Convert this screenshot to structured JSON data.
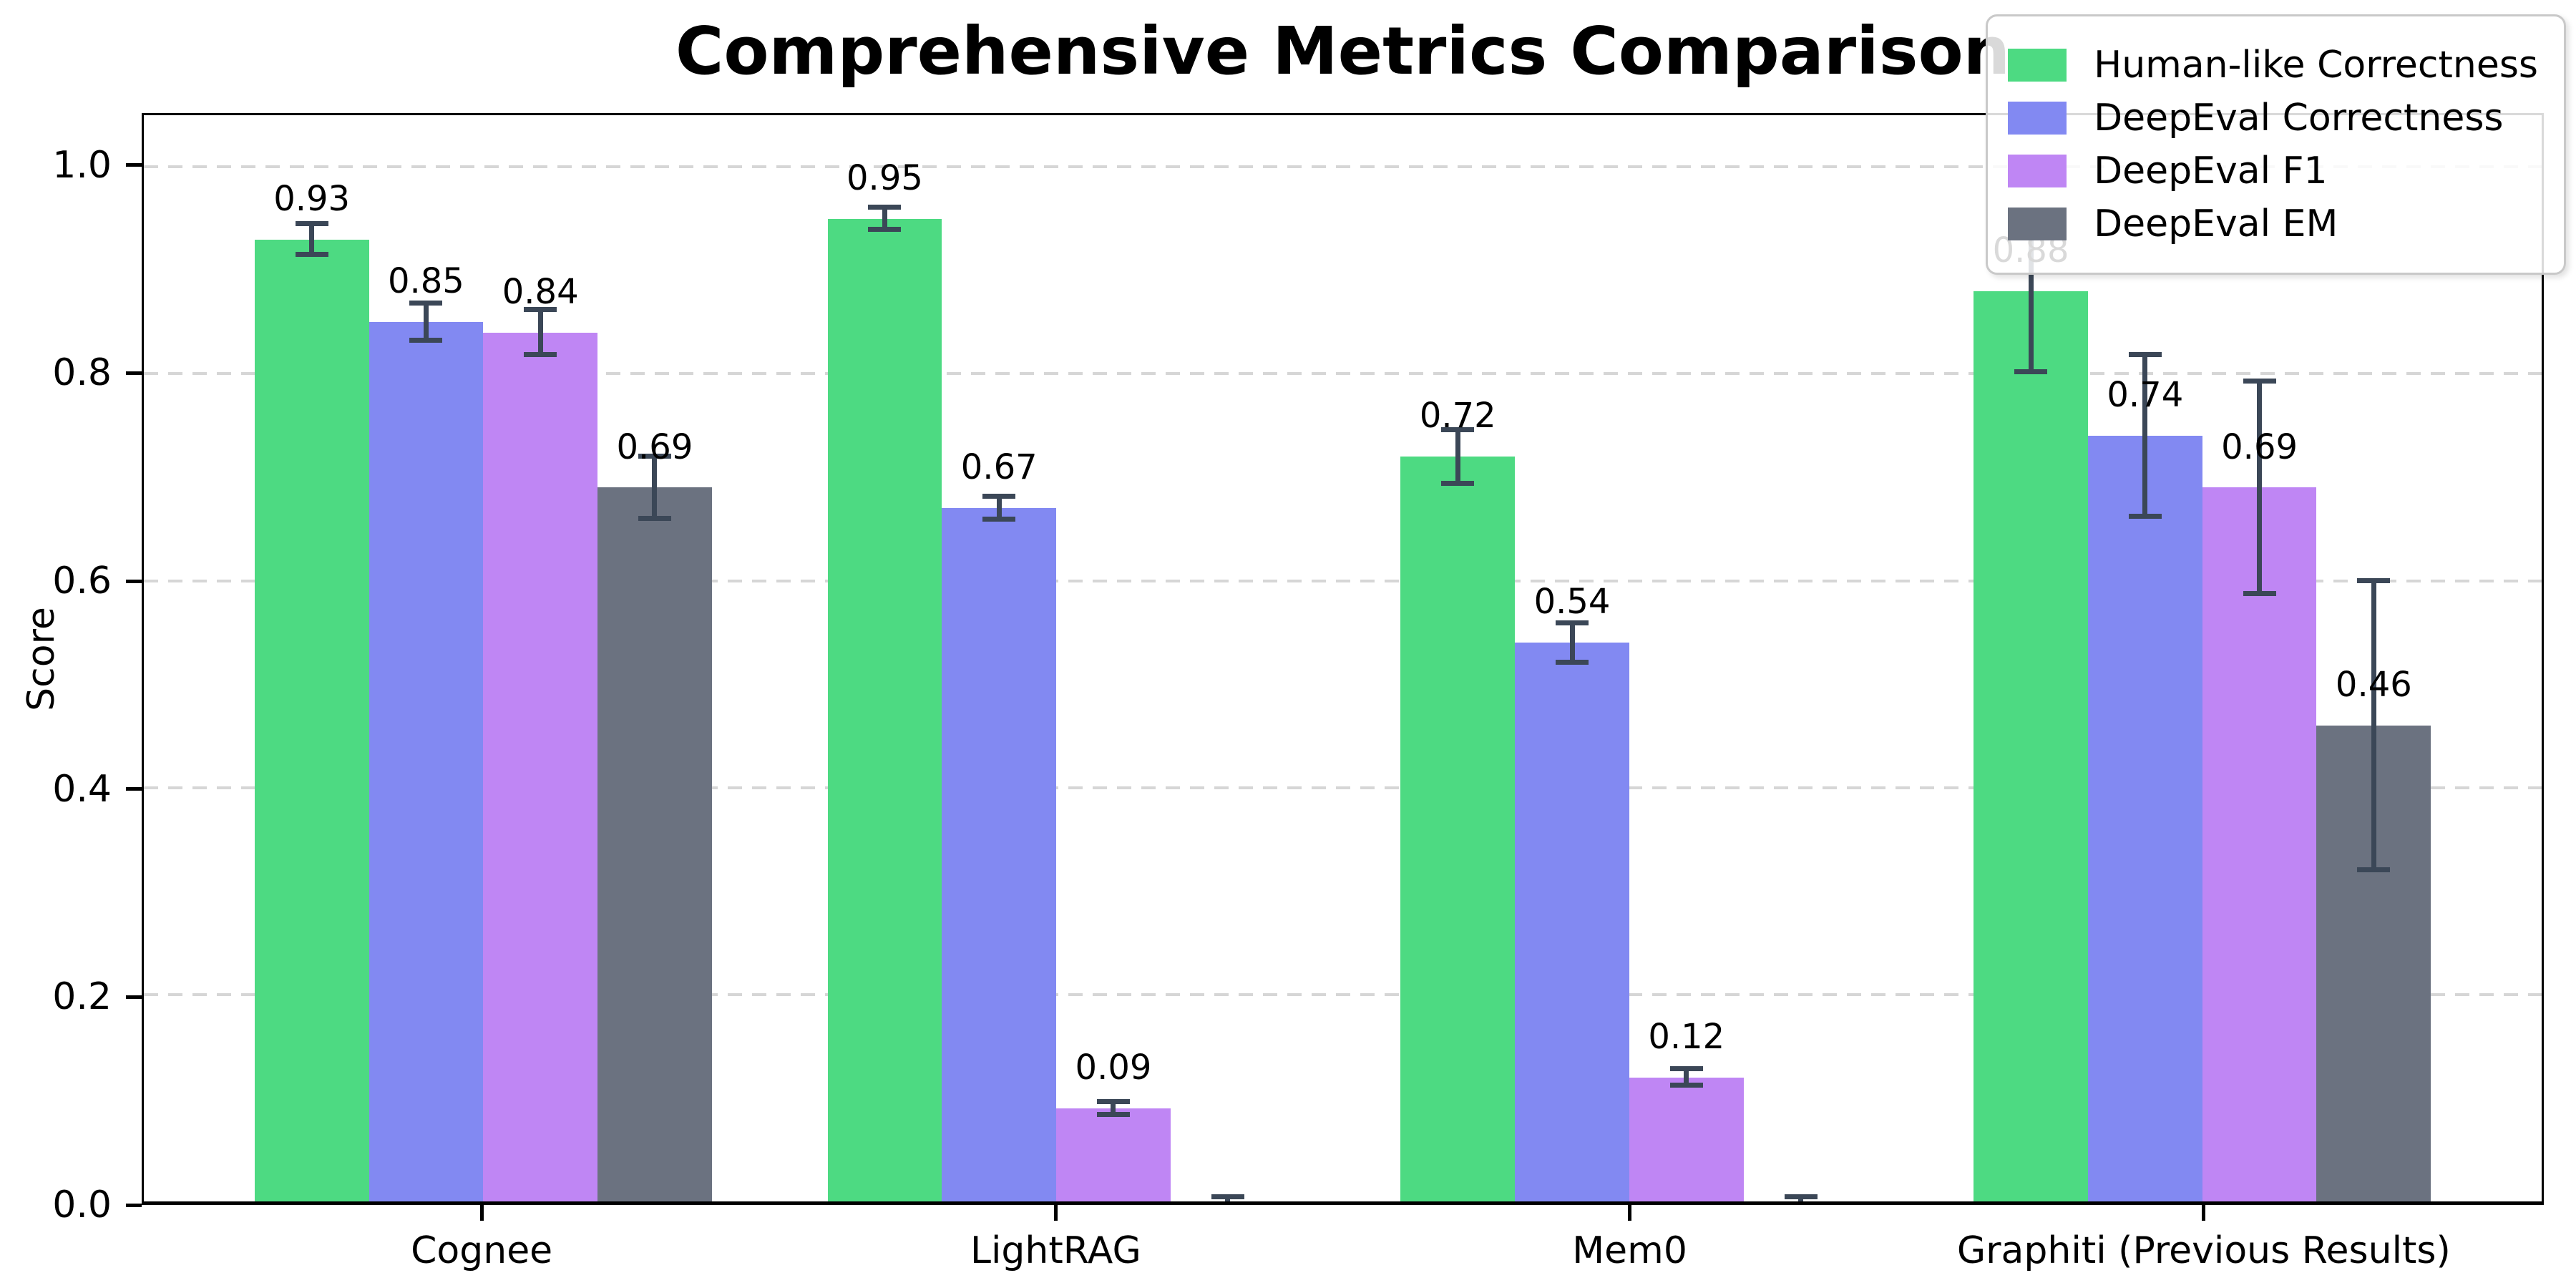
{
  "chart_data": {
    "type": "bar",
    "title": "Comprehensive Metrics Comparison",
    "ylabel": "Score",
    "categories": [
      "Cognee",
      "LightRAG",
      "Mem0",
      "Graphiti (Previous Results)"
    ],
    "series": [
      {
        "name": "Human-like Correctness",
        "color": "#4dda82",
        "values": [
          0.93,
          0.95,
          0.72,
          0.88
        ],
        "errors": [
          0.015,
          0.011,
          0.026,
          0.078
        ],
        "labels": [
          "0.93",
          "0.95",
          "0.72",
          "0.88"
        ]
      },
      {
        "name": "DeepEval Correctness",
        "color": "#8289f2",
        "values": [
          0.85,
          0.67,
          0.54,
          0.74
        ],
        "errors": [
          0.018,
          0.011,
          0.019,
          0.078
        ],
        "labels": [
          "0.85",
          "0.67",
          "0.54",
          "0.74"
        ]
      },
      {
        "name": "DeepEval F1",
        "color": "#bf86f4",
        "values": [
          0.84,
          0.09,
          0.12,
          0.69
        ],
        "errors": [
          0.022,
          0.006,
          0.008,
          0.103
        ],
        "labels": [
          "0.84",
          "0.09",
          "0.12",
          "0.69"
        ]
      },
      {
        "name": "DeepEval EM",
        "color": "#6b7280",
        "values": [
          0.69,
          0.0,
          0.0,
          0.46
        ],
        "errors": [
          0.03,
          0.004,
          0.004,
          0.14
        ],
        "labels": [
          "0.69",
          "",
          "",
          "0.46"
        ]
      }
    ],
    "yticks": [
      "0.0",
      "0.2",
      "0.4",
      "0.6",
      "0.8",
      "1.0"
    ],
    "ylim": [
      0,
      1.05
    ],
    "grid": "dashed-horizontal-y",
    "legend_position": "upper-right",
    "colors": {
      "error_bar": "#3b4757",
      "grid": "#d6d6d6",
      "spine": "#000000",
      "background": "#ffffff"
    }
  }
}
